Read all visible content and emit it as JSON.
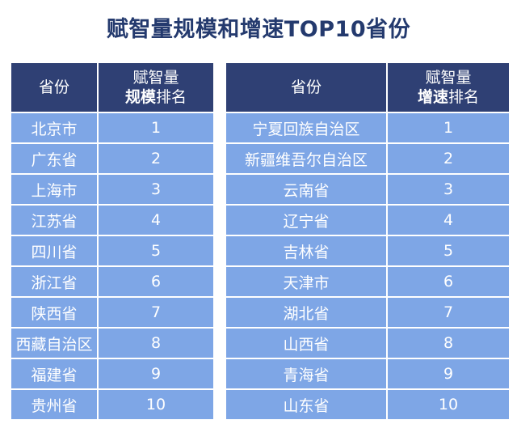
{
  "chart_data": {
    "type": "table",
    "title": "赋智量规模和增速TOP10省份",
    "tables": [
      {
        "headers": {
          "province": "省份",
          "rank_line1": "赋智量",
          "rank_line2_bold": "规模",
          "rank_line2_rest": "排名"
        },
        "rows": [
          {
            "province": "北京市",
            "rank": "1"
          },
          {
            "province": "广东省",
            "rank": "2"
          },
          {
            "province": "上海市",
            "rank": "3"
          },
          {
            "province": "江苏省",
            "rank": "4"
          },
          {
            "province": "四川省",
            "rank": "5"
          },
          {
            "province": "浙江省",
            "rank": "6"
          },
          {
            "province": "陕西省",
            "rank": "7"
          },
          {
            "province": "西藏自治区",
            "rank": "8"
          },
          {
            "province": "福建省",
            "rank": "9"
          },
          {
            "province": "贵州省",
            "rank": "10"
          }
        ]
      },
      {
        "headers": {
          "province": "省份",
          "rank_line1": "赋智量",
          "rank_line2_bold": "增速",
          "rank_line2_rest": "排名"
        },
        "rows": [
          {
            "province": "宁夏回族自治区",
            "rank": "1"
          },
          {
            "province": "新疆维吾尔自治区",
            "rank": "2"
          },
          {
            "province": "云南省",
            "rank": "3"
          },
          {
            "province": "辽宁省",
            "rank": "4"
          },
          {
            "province": "吉林省",
            "rank": "5"
          },
          {
            "province": "天津市",
            "rank": "6"
          },
          {
            "province": "湖北省",
            "rank": "7"
          },
          {
            "province": "山西省",
            "rank": "8"
          },
          {
            "province": "青海省",
            "rank": "9"
          },
          {
            "province": "山东省",
            "rank": "10"
          }
        ]
      }
    ],
    "colors": {
      "title": "#243a6e",
      "header_bg": "#2f4074",
      "cell_bg": "#7ea6e6",
      "text": "#ffffff"
    }
  }
}
